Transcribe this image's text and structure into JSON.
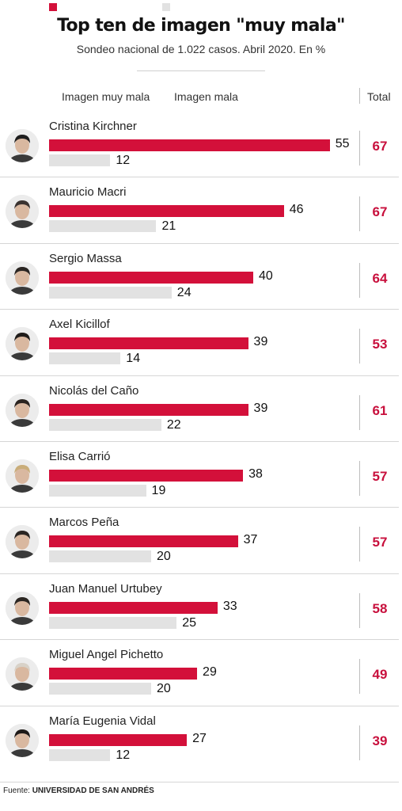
{
  "title": "Top ten de imagen \"muy mala\"",
  "subtitle": "Sondeo nacional de 1.022 casos. Abril 2020. En %",
  "legend": {
    "main_label": "Imagen muy mala",
    "secondary_label": "Imagen mala",
    "total_label": "Total"
  },
  "colors": {
    "main": "#d3103a",
    "secondary": "#e2e2e2",
    "total": "#c8103d"
  },
  "source": {
    "prefix": "Fuente:",
    "name": "UNIVERSIDAD DE SAN ANDRÉS"
  },
  "chart_data": {
    "type": "bar",
    "orientation": "horizontal",
    "categories": [
      "Cristina Kirchner",
      "Mauricio Macri",
      "Sergio Massa",
      "Axel Kicillof",
      "Nicolás del Caño",
      "Elisa Carrió",
      "Marcos Peña",
      "Juan Manuel Urtubey",
      "Miguel Angel Pichetto",
      "María Eugenia Vidal"
    ],
    "series": [
      {
        "name": "Imagen muy mala",
        "values": [
          55,
          46,
          40,
          39,
          39,
          38,
          37,
          33,
          29,
          27
        ]
      },
      {
        "name": "Imagen mala",
        "values": [
          12,
          21,
          24,
          14,
          22,
          19,
          20,
          25,
          20,
          12
        ]
      }
    ],
    "totals": [
      67,
      67,
      64,
      53,
      61,
      57,
      57,
      58,
      49,
      39
    ],
    "title": "Top ten de imagen \"muy mala\"",
    "subtitle": "Sondeo nacional de 1.022 casos. Abril 2020. En %",
    "legend_position": "top-left",
    "grid": false
  }
}
